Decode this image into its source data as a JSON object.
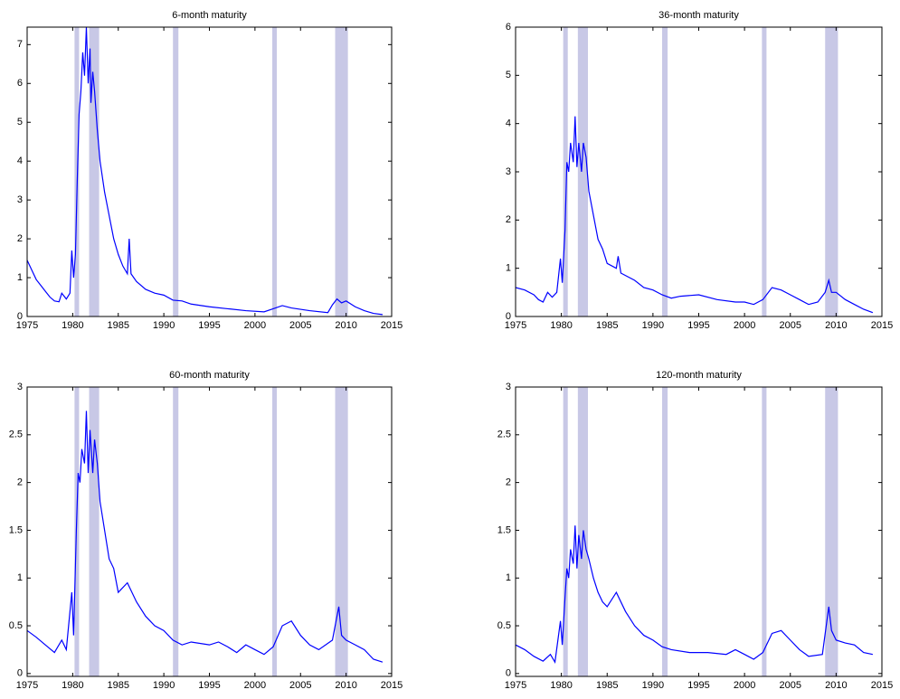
{
  "chart_data": [
    {
      "type": "line",
      "title": "6-month maturity",
      "color": "#0000ff",
      "shade_color": "#c8c8e6",
      "xlim": [
        1975,
        2015
      ],
      "xticks": [
        1975,
        1980,
        1985,
        1990,
        1995,
        2000,
        2005,
        2010,
        2015
      ],
      "ylim": [
        0,
        7.45
      ],
      "yticks": [
        0,
        1,
        2,
        3,
        4,
        5,
        6,
        7
      ],
      "shaded": [
        [
          1980.2,
          1980.7
        ],
        [
          1981.8,
          1982.9
        ],
        [
          1991.0,
          1991.6
        ],
        [
          2001.9,
          2002.4
        ],
        [
          2008.8,
          2010.2
        ]
      ],
      "x": [
        1975,
        1975.5,
        1976,
        1976.5,
        1977,
        1977.5,
        1978,
        1978.5,
        1978.8,
        1979.3,
        1979.7,
        1979.9,
        1980.1,
        1980.3,
        1980.5,
        1980.7,
        1980.9,
        1981.1,
        1981.3,
        1981.5,
        1981.7,
        1981.9,
        1982.0,
        1982.2,
        1982.4,
        1982.7,
        1983,
        1983.5,
        1984,
        1984.5,
        1985,
        1985.5,
        1986.0,
        1986.2,
        1986.4,
        1987,
        1988,
        1989,
        1990,
        1991,
        1992,
        1993,
        1995,
        1997,
        1999,
        2001,
        2002,
        2003,
        2004,
        2006,
        2008,
        2008.5,
        2009,
        2009.5,
        2010,
        2011,
        2012,
        2013,
        2014
      ],
      "values": [
        1.45,
        1.2,
        0.95,
        0.8,
        0.65,
        0.5,
        0.4,
        0.38,
        0.6,
        0.45,
        0.6,
        1.7,
        1.0,
        1.6,
        3.5,
        5.2,
        5.8,
        6.8,
        6.2,
        7.45,
        6.0,
        6.9,
        5.5,
        6.3,
        5.8,
        4.8,
        4.0,
        3.2,
        2.6,
        2.0,
        1.6,
        1.3,
        1.1,
        2.0,
        1.1,
        0.9,
        0.7,
        0.6,
        0.55,
        0.42,
        0.4,
        0.32,
        0.25,
        0.2,
        0.15,
        0.12,
        0.2,
        0.28,
        0.22,
        0.15,
        0.1,
        0.3,
        0.45,
        0.35,
        0.4,
        0.25,
        0.15,
        0.08,
        0.05
      ]
    },
    {
      "type": "line",
      "title": "36-month maturity",
      "color": "#0000ff",
      "shade_color": "#c8c8e6",
      "xlim": [
        1975,
        2015
      ],
      "xticks": [
        1975,
        1980,
        1985,
        1990,
        1995,
        2000,
        2005,
        2010,
        2015
      ],
      "ylim": [
        0,
        6
      ],
      "yticks": [
        0,
        1,
        2,
        3,
        4,
        5,
        6
      ],
      "shaded": [
        [
          1980.2,
          1980.7
        ],
        [
          1981.8,
          1982.9
        ],
        [
          1991.0,
          1991.6
        ],
        [
          2001.9,
          2002.4
        ],
        [
          2008.8,
          2010.2
        ]
      ],
      "x": [
        1975,
        1976,
        1977,
        1977.5,
        1978,
        1978.5,
        1979,
        1979.5,
        1979.9,
        1980.1,
        1980.4,
        1980.6,
        1980.8,
        1981,
        1981.3,
        1981.5,
        1981.7,
        1981.9,
        1982.2,
        1982.4,
        1982.7,
        1983,
        1983.5,
        1984,
        1984.5,
        1985,
        1986,
        1986.2,
        1986.5,
        1988,
        1989,
        1990,
        1991,
        1992,
        1993,
        1995,
        1997,
        1999,
        2000,
        2001,
        2002,
        2003,
        2004,
        2005,
        2006,
        2007,
        2008,
        2008.8,
        2009.2,
        2009.5,
        2010,
        2011,
        2012,
        2013,
        2014
      ],
      "values": [
        0.6,
        0.55,
        0.45,
        0.35,
        0.3,
        0.5,
        0.4,
        0.5,
        1.2,
        0.7,
        1.8,
        3.2,
        3.0,
        3.6,
        3.2,
        4.15,
        3.1,
        3.6,
        3.0,
        3.6,
        3.3,
        2.6,
        2.1,
        1.6,
        1.4,
        1.1,
        1.0,
        1.25,
        0.9,
        0.75,
        0.6,
        0.55,
        0.45,
        0.38,
        0.42,
        0.45,
        0.35,
        0.3,
        0.3,
        0.25,
        0.35,
        0.6,
        0.55,
        0.45,
        0.35,
        0.25,
        0.3,
        0.5,
        0.75,
        0.5,
        0.5,
        0.35,
        0.25,
        0.15,
        0.08
      ]
    },
    {
      "type": "line",
      "title": "60-month maturity",
      "color": "#0000ff",
      "shade_color": "#c8c8e6",
      "xlim": [
        1975,
        2015
      ],
      "xticks": [
        1975,
        1980,
        1985,
        1990,
        1995,
        2000,
        2005,
        2010,
        2015
      ],
      "ylim": [
        -0.03,
        3
      ],
      "yticks": [
        0,
        0.5,
        1,
        1.5,
        2,
        2.5,
        3
      ],
      "shaded": [
        [
          1980.2,
          1980.7
        ],
        [
          1981.8,
          1982.9
        ],
        [
          1991.0,
          1991.6
        ],
        [
          2001.9,
          2002.4
        ],
        [
          2008.8,
          2010.2
        ]
      ],
      "x": [
        1975,
        1976,
        1977,
        1978,
        1978.8,
        1979.3,
        1979.9,
        1980.1,
        1980.4,
        1980.6,
        1980.8,
        1981,
        1981.3,
        1981.5,
        1981.7,
        1981.9,
        1982.2,
        1982.4,
        1982.7,
        1983,
        1983.5,
        1984,
        1984.5,
        1985,
        1986,
        1987,
        1988,
        1989,
        1990,
        1991,
        1992,
        1993,
        1995,
        1996,
        1997,
        1998,
        1999,
        2000,
        2001,
        2002,
        2003,
        2004,
        2005,
        2006,
        2007,
        2008.5,
        2009.2,
        2009.5,
        2010,
        2011,
        2012,
        2013,
        2014
      ],
      "values": [
        0.45,
        0.38,
        0.3,
        0.22,
        0.35,
        0.25,
        0.85,
        0.4,
        1.5,
        2.1,
        2.0,
        2.35,
        2.2,
        2.75,
        2.1,
        2.55,
        2.1,
        2.45,
        2.2,
        1.8,
        1.5,
        1.2,
        1.1,
        0.85,
        0.95,
        0.75,
        0.6,
        0.5,
        0.45,
        0.35,
        0.3,
        0.33,
        0.3,
        0.33,
        0.28,
        0.22,
        0.3,
        0.25,
        0.2,
        0.28,
        0.5,
        0.55,
        0.4,
        0.3,
        0.25,
        0.35,
        0.7,
        0.4,
        0.35,
        0.3,
        0.25,
        0.15,
        0.12
      ]
    },
    {
      "type": "line",
      "title": "120-month maturity",
      "color": "#0000ff",
      "shade_color": "#c8c8e6",
      "xlim": [
        1975,
        2015
      ],
      "xticks": [
        1975,
        1980,
        1985,
        1990,
        1995,
        2000,
        2005,
        2010,
        2015
      ],
      "ylim": [
        -0.03,
        3
      ],
      "yticks": [
        0,
        0.5,
        1,
        1.5,
        2,
        2.5,
        3
      ],
      "shaded": [
        [
          1980.2,
          1980.7
        ],
        [
          1981.8,
          1982.9
        ],
        [
          1991.0,
          1991.6
        ],
        [
          2001.9,
          2002.4
        ],
        [
          2008.8,
          2010.2
        ]
      ],
      "x": [
        1975,
        1976,
        1977,
        1978,
        1978.8,
        1979.3,
        1979.9,
        1980.1,
        1980.4,
        1980.6,
        1980.8,
        1981,
        1981.3,
        1981.5,
        1981.7,
        1981.9,
        1982.2,
        1982.4,
        1982.7,
        1983,
        1983.5,
        1984,
        1984.5,
        1985,
        1986,
        1987,
        1988,
        1989,
        1990,
        1991,
        1992,
        1994,
        1996,
        1998,
        1999,
        2000,
        2001,
        2002,
        2003,
        2004,
        2005,
        2006,
        2007,
        2008.5,
        2009.2,
        2009.5,
        2010,
        2011,
        2012,
        2013,
        2014
      ],
      "values": [
        0.3,
        0.25,
        0.18,
        0.13,
        0.2,
        0.12,
        0.55,
        0.3,
        0.8,
        1.1,
        1.0,
        1.3,
        1.15,
        1.55,
        1.1,
        1.45,
        1.2,
        1.5,
        1.3,
        1.2,
        1.0,
        0.85,
        0.75,
        0.7,
        0.85,
        0.65,
        0.5,
        0.4,
        0.35,
        0.28,
        0.25,
        0.22,
        0.22,
        0.2,
        0.25,
        0.2,
        0.15,
        0.22,
        0.42,
        0.45,
        0.35,
        0.25,
        0.18,
        0.2,
        0.7,
        0.45,
        0.35,
        0.32,
        0.3,
        0.22,
        0.2
      ]
    }
  ]
}
